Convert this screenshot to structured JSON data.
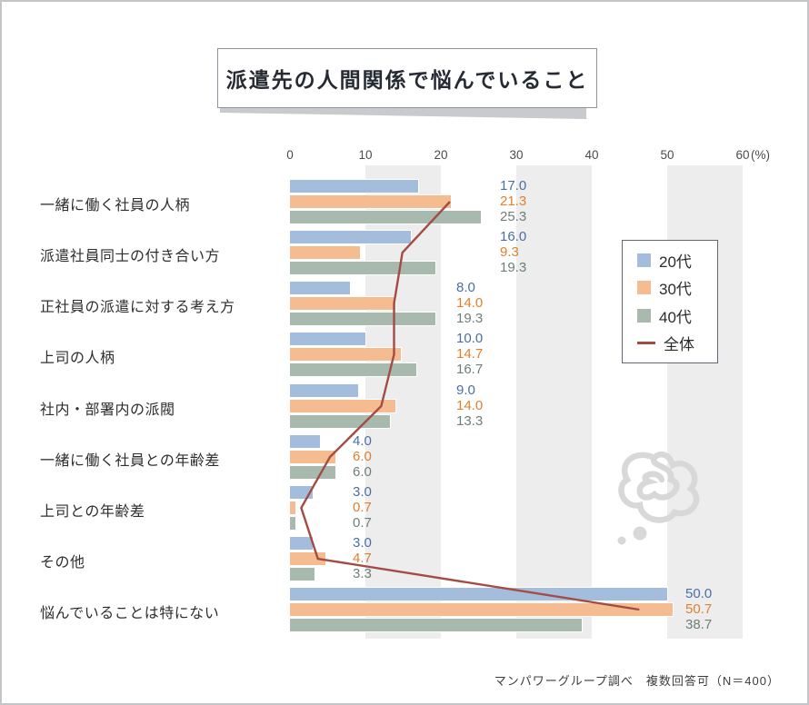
{
  "title": "派遣先の人間関係で悩んでいること",
  "footer": "マンパワーグループ調べ　複数回答可（N＝400）",
  "colors": {
    "bar_blue": "#a4bddd",
    "bar_orange": "#f4bc90",
    "bar_green": "#a8baad",
    "line_red": "#a34c44",
    "label_blue": "#4a6fa5",
    "label_orange": "#e07f2e",
    "label_green": "#6e8076",
    "band_gray": "#ededed",
    "doodle_gray": "#d8d8d8"
  },
  "legend": {
    "items": [
      {
        "label": "20代",
        "type": "square",
        "color": "#a4bddd"
      },
      {
        "label": "30代",
        "type": "square",
        "color": "#f4bc90"
      },
      {
        "label": "40代",
        "type": "square",
        "color": "#a8baad"
      },
      {
        "label": "全体",
        "type": "line",
        "color": "#a34c44"
      }
    ]
  },
  "chart_data": {
    "type": "bar",
    "orientation": "horizontal",
    "title": "派遣先の人間関係で悩んでいること",
    "xlabel": "(%)",
    "xlim": [
      0,
      60
    ],
    "x_ticks": [
      0,
      10,
      20,
      30,
      40,
      50,
      60
    ],
    "grid": "alternating gray vertical bands 10-20, 30-40, 50-60",
    "legend_position": "right",
    "categories": [
      "一緒に働く社員の人柄",
      "派遣社員同士の付き合い方",
      "正社員の派遣に対する考え方",
      "上司の人柄",
      "社内・部署内の派閥",
      "一緒に働く社員との年齢差",
      "上司との年齢差",
      "その他",
      "悩んでいることは特にない"
    ],
    "series": [
      {
        "name": "20代",
        "color": "#a4bddd",
        "label_color": "#4a6fa5",
        "values": [
          17.0,
          16.0,
          8.0,
          10.0,
          9.0,
          4.0,
          3.0,
          3.0,
          50.0
        ]
      },
      {
        "name": "30代",
        "color": "#f4bc90",
        "label_color": "#e07f2e",
        "values": [
          21.3,
          9.3,
          14.0,
          14.7,
          14.0,
          6.0,
          0.7,
          4.7,
          50.7
        ]
      },
      {
        "name": "40代",
        "color": "#a8baad",
        "label_color": "#6e8076",
        "values": [
          25.3,
          19.3,
          19.3,
          16.7,
          13.3,
          6.0,
          0.7,
          3.3,
          38.7
        ]
      }
    ],
    "line_series": {
      "name": "全体",
      "color": "#a34c44",
      "values": [
        21.2,
        14.9,
        13.8,
        13.8,
        12.1,
        5.3,
        1.5,
        3.7,
        46.3
      ]
    },
    "value_label_x": [
      548,
      548,
      500,
      500,
      500,
      386,
      386,
      386,
      752
    ]
  }
}
